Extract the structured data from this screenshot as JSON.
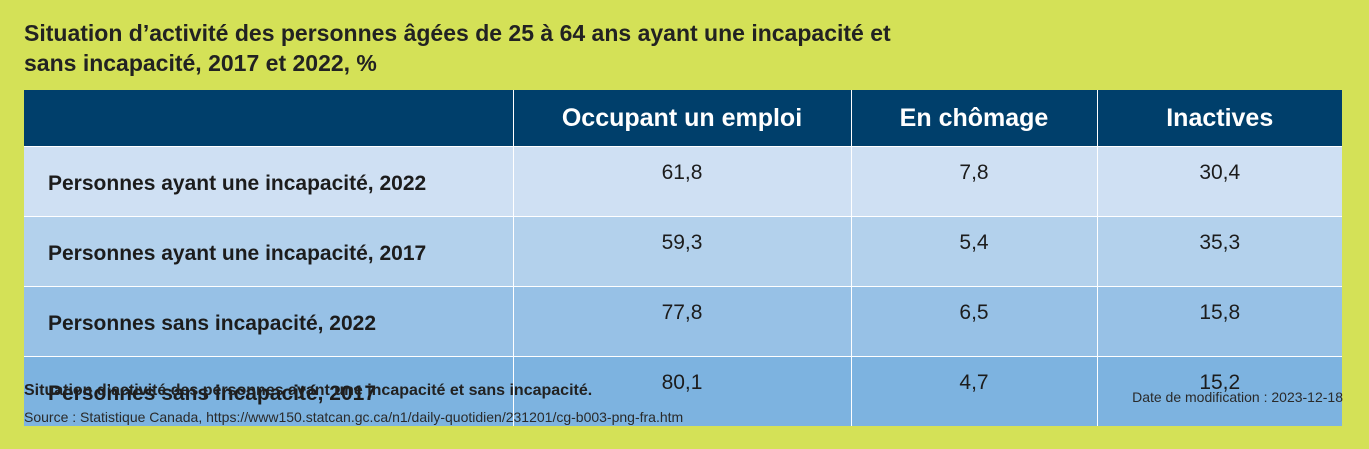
{
  "title_line1": "Situation d’activité des personnes âgées de 25 à 64 ans ayant une incapacité et",
  "title_line2": "sans incapacité, 2017 et 2022, %",
  "caption": "Situation d’activité des personnes ayant une incapacité et sans incapacité.",
  "source": "Source : Statistique Canada, https://www150.statcan.gc.ca/n1/daily-quotidien/231201/cg-b003-png-fra.htm",
  "modified": "Date de modification : 2023-12-18",
  "colors": {
    "background": "#d4e157",
    "header": "#003f6b",
    "row_shades": [
      "#cfe0f3",
      "#b3d1ec",
      "#97c1e6",
      "#7db3e0"
    ]
  },
  "chart_data": {
    "type": "table",
    "title": "Situation d’activité des personnes âgées de 25 à 64 ans ayant une incapacité et sans incapacité, 2017 et 2022, %",
    "columns": [
      "",
      "Occupant un emploi",
      "En chômage",
      "Inactives"
    ],
    "rows": [
      {
        "label": "Personnes ayant une incapacité, 2022",
        "values": [
          "61,8",
          "7,8",
          "30,4"
        ]
      },
      {
        "label": "Personnes ayant une incapacité, 2017",
        "values": [
          "59,3",
          "5,4",
          "35,3"
        ]
      },
      {
        "label": "Personnes sans incapacité, 2022",
        "values": [
          "77,8",
          "6,5",
          "15,8"
        ]
      },
      {
        "label": "Personnes sans incapacité, 2017",
        "values": [
          "80,1",
          "4,7",
          "15,2"
        ]
      }
    ]
  }
}
